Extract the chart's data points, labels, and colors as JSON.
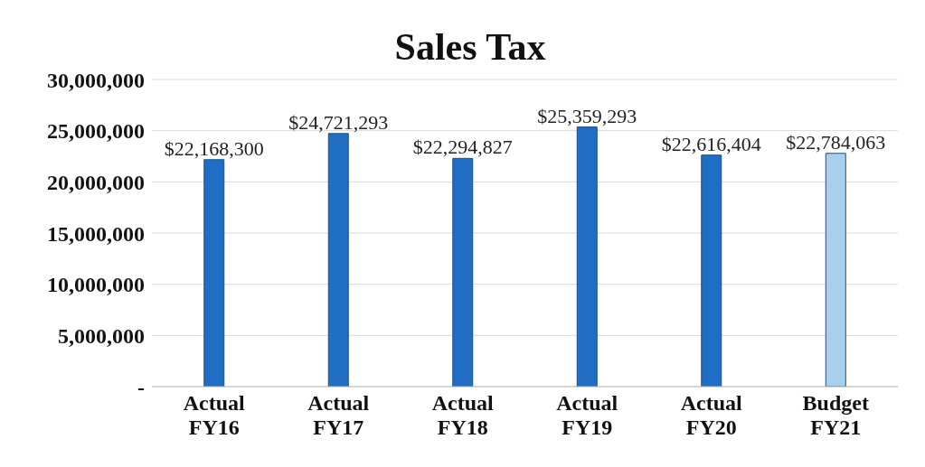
{
  "chart_data": {
    "type": "bar",
    "title": "Sales Tax",
    "categories": [
      "Actual FY16",
      "Actual FY17",
      "Actual FY18",
      "Actual FY19",
      "Actual FY20",
      "Budget FY21"
    ],
    "values": [
      22168300,
      24721293,
      22294827,
      25359293,
      22616404,
      22784063
    ],
    "colors": [
      "#1f6ec4",
      "#1f6ec4",
      "#1f6ec4",
      "#1f6ec4",
      "#1f6ec4",
      "#a8d0ec"
    ],
    "value_labels": [
      "$22,168,300",
      "$24,721,293",
      "$22,294,827",
      "$25,359,293",
      "$22,616,404",
      "$22,784,063"
    ],
    "ylim": [
      0,
      30000000
    ],
    "yticks": [
      {
        "value": 0,
        "label": "-"
      },
      {
        "value": 5000000,
        "label": "5,000,000"
      },
      {
        "value": 10000000,
        "label": "10,000,000"
      },
      {
        "value": 15000000,
        "label": "15,000,000"
      },
      {
        "value": 20000000,
        "label": "20,000,000"
      },
      {
        "value": 25000000,
        "label": "25,000,000"
      },
      {
        "value": 30000000,
        "label": "30,000,000"
      }
    ],
    "grid": "y"
  }
}
